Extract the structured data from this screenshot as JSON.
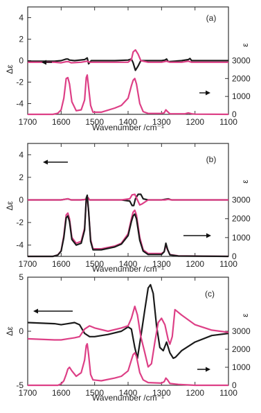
{
  "colors": {
    "black_series": "#1a1a1a",
    "magenta_series": "#dd3f86",
    "axis": "#333333"
  },
  "chart_data": [
    {
      "type": "line",
      "panel_label": "(a)",
      "xlabel": "Wavenumber /cm⁻¹",
      "ylabel_left": "Δε",
      "ylabel_right": "ε",
      "xlim": [
        1700,
        1100
      ],
      "x_reversed": true,
      "x_ticks": [
        1700,
        1600,
        1500,
        1400,
        1300,
        1200,
        1100
      ],
      "ylim_left": [
        -5,
        5
      ],
      "yticks_left": [
        4,
        2,
        0,
        -2,
        -4
      ],
      "ylim_right": [
        0,
        6000
      ],
      "yticks_right": [
        3000,
        2000,
        1000,
        0
      ],
      "grid": false,
      "series": [
        {
          "axis": "left",
          "color": "#1a1a1a",
          "x": [
            1700,
            1620,
            1600,
            1585,
            1580,
            1575,
            1560,
            1530,
            1522,
            1518,
            1510,
            1480,
            1440,
            1400,
            1390,
            1385,
            1378,
            1370,
            1362,
            1340,
            1300,
            1290,
            1285,
            1280,
            1240,
            1220,
            1215,
            1210,
            1180,
            1100
          ],
          "y": [
            -0.05,
            -0.05,
            0.0,
            0.15,
            0.15,
            0.05,
            0.0,
            0.1,
            0.25,
            -0.3,
            0.0,
            0.0,
            0.0,
            0.05,
            0.15,
            -0.2,
            -0.9,
            -0.5,
            0.0,
            0.0,
            0.0,
            0.05,
            0.15,
            -0.1,
            0.0,
            0.1,
            0.2,
            0.0,
            0.0,
            0.0
          ]
        },
        {
          "axis": "left",
          "color": "#dd3f86",
          "x": [
            1700,
            1620,
            1600,
            1585,
            1578,
            1570,
            1540,
            1522,
            1515,
            1500,
            1460,
            1440,
            1400,
            1390,
            1385,
            1378,
            1370,
            1362,
            1340,
            1300,
            1285,
            1275,
            1240,
            1220,
            1210,
            1180,
            1100
          ],
          "y": [
            -0.15,
            -0.15,
            -0.2,
            -0.1,
            -0.1,
            -0.2,
            -0.15,
            -0.05,
            -0.15,
            -0.15,
            -0.15,
            -0.15,
            -0.15,
            0.1,
            0.8,
            1.0,
            0.6,
            0.0,
            -0.15,
            -0.15,
            -0.05,
            -0.15,
            -0.15,
            -0.05,
            -0.15,
            -0.15,
            -0.15
          ]
        },
        {
          "axis": "right",
          "color": "#dd3f86",
          "x": [
            1700,
            1625,
            1610,
            1600,
            1592,
            1585,
            1580,
            1575,
            1568,
            1555,
            1540,
            1530,
            1525,
            1522,
            1518,
            1512,
            1505,
            1480,
            1440,
            1420,
            1400,
            1390,
            1385,
            1380,
            1375,
            1365,
            1355,
            1340,
            1300,
            1292,
            1287,
            1282,
            1275,
            1250,
            1230,
            1220,
            1210,
            1200,
            1100
          ],
          "y": [
            0,
            0,
            60,
            250,
            900,
            2000,
            2050,
            1700,
            700,
            200,
            250,
            800,
            2050,
            2200,
            1500,
            500,
            120,
            120,
            350,
            500,
            900,
            1600,
            1900,
            2000,
            1700,
            600,
            150,
            50,
            50,
            80,
            250,
            150,
            30,
            30,
            30,
            80,
            30,
            10,
            0
          ]
        }
      ]
    },
    {
      "type": "line",
      "panel_label": "(b)",
      "xlabel": "Wavenumber /cm⁻¹",
      "ylabel_left": "Δε",
      "ylabel_right": "ε",
      "xlim": [
        1700,
        1100
      ],
      "x_reversed": true,
      "x_ticks": [
        1700,
        1600,
        1500,
        1400,
        1300,
        1200,
        1100
      ],
      "ylim_left": [
        -5,
        5
      ],
      "yticks_left": [
        4,
        2,
        0,
        -2,
        -4
      ],
      "ylim_right": [
        0,
        6000
      ],
      "yticks_right": [
        3000,
        2000,
        1000,
        0
      ],
      "grid": false,
      "series": [
        {
          "axis": "left",
          "color": "#1a1a1a",
          "x": [
            1700,
            1620,
            1600,
            1590,
            1580,
            1570,
            1540,
            1525,
            1520,
            1515,
            1505,
            1460,
            1420,
            1395,
            1388,
            1383,
            1378,
            1370,
            1362,
            1355,
            1340,
            1300,
            1290,
            1280,
            1270,
            1250,
            1100
          ],
          "y": [
            0.0,
            0.0,
            0.0,
            0.05,
            0.1,
            0.0,
            0.0,
            0.05,
            0.2,
            0.0,
            0.0,
            0.0,
            0.0,
            -0.1,
            -0.5,
            -0.5,
            0.1,
            0.5,
            0.5,
            0.1,
            0.0,
            0.0,
            0.05,
            0.1,
            0.0,
            0.0,
            0.0
          ]
        },
        {
          "axis": "left",
          "color": "#dd3f86",
          "x": [
            1700,
            1620,
            1600,
            1590,
            1580,
            1570,
            1540,
            1525,
            1520,
            1515,
            1505,
            1460,
            1420,
            1395,
            1388,
            1380,
            1372,
            1365,
            1358,
            1340,
            1300,
            1290,
            1280,
            1270,
            1250,
            1100
          ],
          "y": [
            0.0,
            0.0,
            0.0,
            0.05,
            0.1,
            0.0,
            0.0,
            0.05,
            0.2,
            0.0,
            0.0,
            0.0,
            0.0,
            0.1,
            0.45,
            0.5,
            0.0,
            -0.45,
            -0.35,
            0.0,
            0.0,
            0.0,
            0.05,
            0.0,
            0.0,
            0.0
          ]
        },
        {
          "axis": "right",
          "color": "#dd3f86",
          "x": [
            1700,
            1625,
            1610,
            1600,
            1592,
            1585,
            1580,
            1575,
            1568,
            1555,
            1540,
            1530,
            1525,
            1522,
            1518,
            1512,
            1505,
            1480,
            1440,
            1420,
            1400,
            1390,
            1385,
            1380,
            1375,
            1365,
            1355,
            1340,
            1300,
            1292,
            1287,
            1282,
            1275,
            1250,
            1100
          ],
          "y": [
            0,
            0,
            80,
            300,
            1100,
            2200,
            2300,
            2000,
            1000,
            700,
            800,
            1500,
            3000,
            3150,
            2400,
            900,
            400,
            400,
            550,
            700,
            1200,
            2000,
            2350,
            2450,
            2200,
            1000,
            350,
            150,
            150,
            250,
            600,
            350,
            100,
            30,
            0
          ]
        },
        {
          "axis": "right",
          "color": "#1a1a1a",
          "x": [
            1700,
            1625,
            1610,
            1600,
            1592,
            1585,
            1580,
            1575,
            1568,
            1555,
            1540,
            1530,
            1525,
            1522,
            1518,
            1512,
            1505,
            1480,
            1440,
            1420,
            1400,
            1390,
            1385,
            1380,
            1375,
            1365,
            1355,
            1340,
            1300,
            1292,
            1287,
            1282,
            1275,
            1250,
            1100
          ],
          "y": [
            0,
            0,
            70,
            280,
            1000,
            2050,
            2150,
            1850,
            900,
            600,
            700,
            1400,
            3100,
            3250,
            2400,
            800,
            350,
            350,
            500,
            650,
            1100,
            1850,
            2150,
            2250,
            2000,
            850,
            280,
            100,
            100,
            250,
            700,
            380,
            80,
            20,
            0
          ]
        }
      ]
    },
    {
      "type": "line",
      "panel_label": "(c)",
      "xlabel": "Wavenumber /cm⁻¹",
      "ylabel_left": "Δε",
      "ylabel_right": "ε",
      "xlim": [
        1700,
        1100
      ],
      "x_reversed": true,
      "x_ticks": [
        1700,
        1600,
        1500,
        1400,
        1300,
        1200,
        1100
      ],
      "ylim_left": [
        -5,
        5
      ],
      "yticks_left": [
        5,
        0,
        -5
      ],
      "ylim_right": [
        0,
        6000
      ],
      "yticks_right": [
        3000,
        2000,
        1000,
        0
      ],
      "grid": false,
      "series": [
        {
          "axis": "left",
          "color": "#1a1a1a",
          "x": [
            1700,
            1620,
            1600,
            1580,
            1560,
            1545,
            1530,
            1515,
            1500,
            1460,
            1420,
            1400,
            1390,
            1380,
            1372,
            1362,
            1350,
            1340,
            1333,
            1325,
            1315,
            1305,
            1295,
            1285,
            1275,
            1265,
            1258,
            1240,
            1200,
            1150,
            1100
          ],
          "y": [
            0.8,
            0.7,
            0.6,
            0.7,
            0.8,
            0.6,
            -0.2,
            -0.5,
            -0.5,
            -0.3,
            0.0,
            0.4,
            0.2,
            -1.5,
            -2.5,
            -0.5,
            2.0,
            4.0,
            4.3,
            3.5,
            0.5,
            -1.5,
            -1.8,
            -1.0,
            -2.0,
            -2.5,
            -2.4,
            -1.8,
            -1.0,
            -0.4,
            -0.2
          ]
        },
        {
          "axis": "left",
          "color": "#dd3f86",
          "x": [
            1700,
            1620,
            1600,
            1580,
            1560,
            1545,
            1530,
            1515,
            1500,
            1460,
            1420,
            1400,
            1390,
            1380,
            1372,
            1362,
            1350,
            1340,
            1330,
            1320,
            1310,
            1300,
            1290,
            1280,
            1275,
            1268,
            1260,
            1240,
            1200,
            1150,
            1100
          ],
          "y": [
            -0.7,
            -0.8,
            -0.8,
            -0.7,
            -0.6,
            -0.5,
            0.2,
            0.5,
            0.3,
            0.0,
            0.3,
            0.5,
            1.2,
            2.3,
            1.5,
            -0.5,
            -2.0,
            -3.3,
            -3.0,
            -1.0,
            0.8,
            1.2,
            0.6,
            -0.8,
            -1.2,
            -0.5,
            2.0,
            1.5,
            0.6,
            0.1,
            -0.1
          ]
        },
        {
          "axis": "right",
          "color": "#dd3f86",
          "x": [
            1700,
            1625,
            1610,
            1600,
            1592,
            1585,
            1580,
            1575,
            1568,
            1555,
            1540,
            1530,
            1525,
            1522,
            1518,
            1512,
            1505,
            1480,
            1440,
            1420,
            1400,
            1390,
            1385,
            1380,
            1375,
            1365,
            1355,
            1340,
            1300,
            1292,
            1287,
            1282,
            1275,
            1250,
            1200,
            1100
          ],
          "y": [
            0,
            0,
            0,
            80,
            250,
            600,
            900,
            1000,
            800,
            500,
            700,
            1400,
            2200,
            2300,
            1700,
            600,
            300,
            250,
            400,
            500,
            800,
            1400,
            1700,
            1800,
            1600,
            700,
            300,
            150,
            120,
            200,
            400,
            300,
            100,
            50,
            0,
            0
          ]
        }
      ]
    }
  ]
}
